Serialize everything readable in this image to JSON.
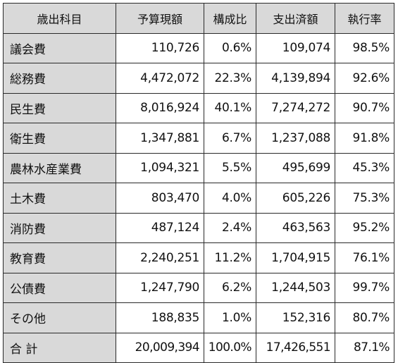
{
  "headers": [
    "歳出科目",
    "予算現額",
    "構成比",
    "支出済額",
    "執行率"
  ],
  "rows": [
    {
      "name": "議会費",
      "budget": "110,726",
      "ratio": "0.6%",
      "spent": "109,074",
      "rate": "98.5%"
    },
    {
      "name": "総務費",
      "budget": "4,472,072",
      "ratio": "22.3%",
      "spent": "4,139,894",
      "rate": "92.6%"
    },
    {
      "name": "民生費",
      "budget": "8,016,924",
      "ratio": "40.1%",
      "spent": "7,274,272",
      "rate": "90.7%"
    },
    {
      "name": "衛生費",
      "budget": "1,347,881",
      "ratio": "6.7%",
      "spent": "1,237,088",
      "rate": "91.8%"
    },
    {
      "name": "農林水産業費",
      "budget": "1,094,321",
      "ratio": "5.5%",
      "spent": "495,699",
      "rate": "45.3%"
    },
    {
      "name": "土木費",
      "budget": "803,470",
      "ratio": "4.0%",
      "spent": "605,226",
      "rate": "75.3%"
    },
    {
      "name": "消防費",
      "budget": "487,124",
      "ratio": "2.4%",
      "spent": "463,563",
      "rate": "95.2%"
    },
    {
      "name": "教育費",
      "budget": "2,240,251",
      "ratio": "11.2%",
      "spent": "1,704,915",
      "rate": "76.1%"
    },
    {
      "name": "公債費",
      "budget": "1,247,790",
      "ratio": "6.2%",
      "spent": "1,244,503",
      "rate": "99.7%"
    },
    {
      "name": "その他",
      "budget": "188,835",
      "ratio": "1.0%",
      "spent": "152,316",
      "rate": "80.7%"
    }
  ],
  "total": {
    "name": "合 計",
    "budget": "20,009,394",
    "ratio": "100.0%",
    "spent": "17,426,551",
    "rate": "87.1%"
  }
}
